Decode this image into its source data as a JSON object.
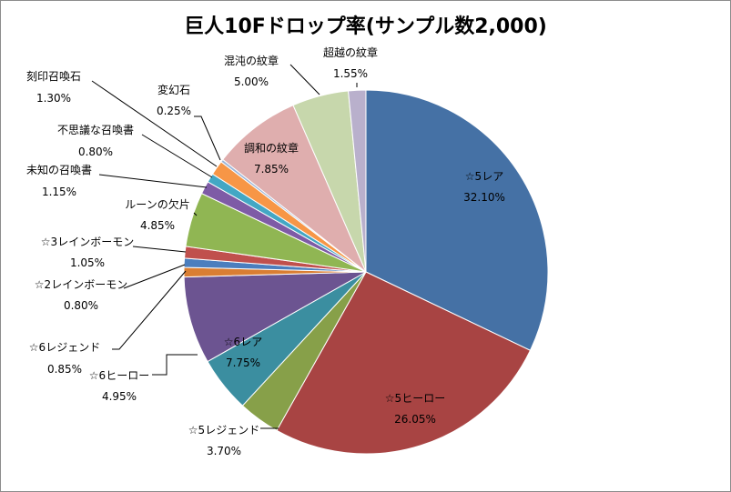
{
  "chart_data": {
    "type": "pie",
    "title": "巨人10Fドロップ率(サンプル数2,000)",
    "categories": [
      "☆5レア",
      "☆5ヒーロー",
      "☆5レジェンド",
      "☆6ヒーロー",
      "☆6レア",
      "☆6レジェンド",
      "☆2レインボーモン",
      "☆3レインボーモン",
      "ルーンの欠片",
      "未知の召喚書",
      "不思議な召喚書",
      "刻印召喚石",
      "変幻石",
      "調和の紋章",
      "混沌の紋章",
      "超越の紋章"
    ],
    "values": [
      32.1,
      26.05,
      3.7,
      4.95,
      7.75,
      0.85,
      0.8,
      1.05,
      4.85,
      1.15,
      0.8,
      1.3,
      0.25,
      7.85,
      5.0,
      1.55
    ],
    "value_labels": [
      "32.10%",
      "26.05%",
      "3.70%",
      "4.95%",
      "7.75%",
      "0.85%",
      "0.80%",
      "1.05%",
      "4.85%",
      "1.15%",
      "0.80%",
      "1.30%",
      "0.25%",
      "7.85%",
      "5.00%",
      "1.55%"
    ],
    "colors": [
      "#4571a5",
      "#a84443",
      "#87a049",
      "#3b8ea0",
      "#6c5491",
      "#d97e33",
      "#4b7ebe",
      "#c0504d",
      "#90b653",
      "#7e5ba6",
      "#43a7c4",
      "#f79646",
      "#9cb5d8",
      "#dfaeae",
      "#c7d7ac",
      "#b9b0cc"
    ],
    "legend": "none"
  }
}
